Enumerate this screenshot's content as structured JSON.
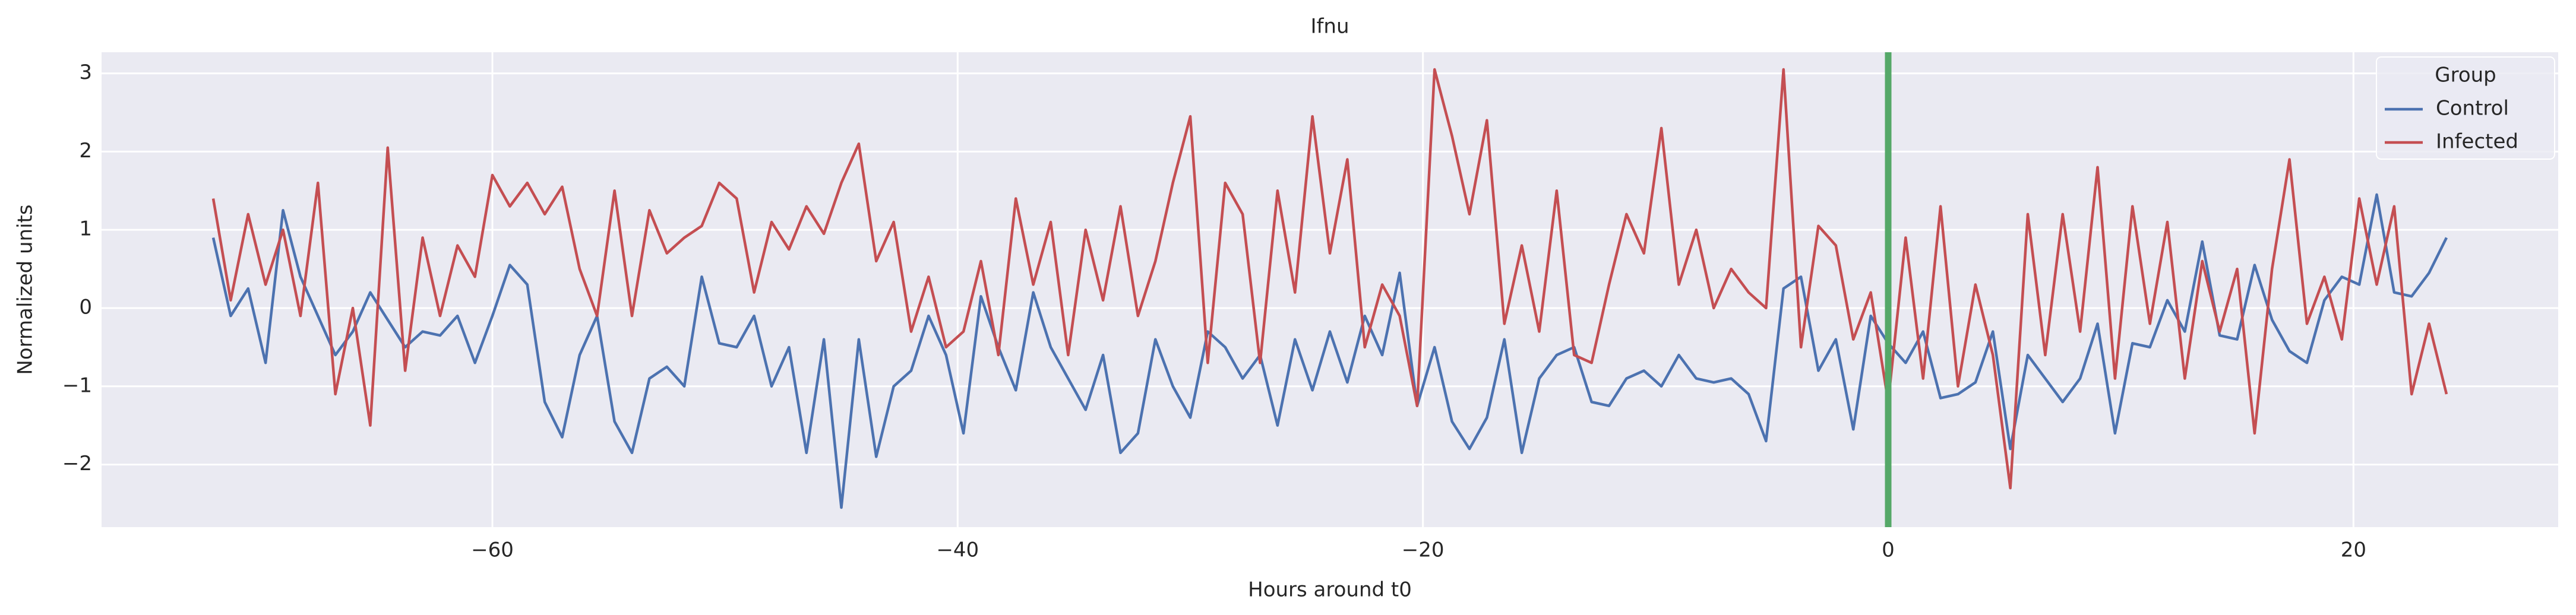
{
  "chart_data": {
    "type": "line",
    "title": "Ifnu",
    "xlabel": "Hours around t0",
    "ylabel": "Normalized units",
    "x": [
      -72,
      -71.25,
      -70.5,
      -69.75,
      -69,
      -68.25,
      -67.5,
      -66.75,
      -66,
      -65.25,
      -64.5,
      -63.75,
      -63,
      -62.25,
      -61.5,
      -60.75,
      -60,
      -59.25,
      -58.5,
      -57.75,
      -57,
      -56.25,
      -55.5,
      -54.75,
      -54,
      -53.25,
      -52.5,
      -51.75,
      -51,
      -50.25,
      -49.5,
      -48.75,
      -48,
      -47.25,
      -46.5,
      -45.75,
      -45,
      -44.25,
      -43.5,
      -42.75,
      -42,
      -41.25,
      -40.5,
      -39.75,
      -39,
      -38.25,
      -37.5,
      -36.75,
      -36,
      -35.25,
      -34.5,
      -33.75,
      -33,
      -32.25,
      -31.5,
      -30.75,
      -30,
      -29.25,
      -28.5,
      -27.75,
      -27,
      -26.25,
      -25.5,
      -24.75,
      -24,
      -23.25,
      -22.5,
      -21.75,
      -21,
      -20.25,
      -19.5,
      -18.75,
      -18,
      -17.25,
      -16.5,
      -15.75,
      -15,
      -14.25,
      -13.5,
      -12.75,
      -12,
      -11.25,
      -10.5,
      -9.75,
      -9,
      -8.25,
      -7.5,
      -6.75,
      -6,
      -5.25,
      -4.5,
      -3.75,
      -3,
      -2.25,
      -1.5,
      -0.75,
      0,
      0.75,
      1.5,
      2.25,
      3,
      3.75,
      4.5,
      5.25,
      6,
      6.75,
      7.5,
      8.25,
      9,
      9.75,
      10.5,
      11.25,
      12,
      12.75,
      13.5,
      14.25,
      15,
      15.75,
      16.5,
      17.25,
      18,
      18.75,
      19.5,
      20.25,
      21,
      21.75,
      22.5,
      23.25,
      24
    ],
    "series": [
      {
        "name": "Control",
        "color": "#4c72b0",
        "values": [
          0.9,
          -0.1,
          0.25,
          -0.7,
          1.25,
          0.4,
          -0.1,
          -0.6,
          -0.3,
          0.2,
          -0.15,
          -0.5,
          -0.3,
          -0.35,
          -0.1,
          -0.7,
          -0.1,
          0.55,
          0.3,
          -1.2,
          -1.65,
          -0.6,
          -0.1,
          -1.45,
          -1.85,
          -0.9,
          -0.75,
          -1.0,
          0.4,
          -0.45,
          -0.5,
          -0.1,
          -1.0,
          -0.5,
          -1.85,
          -0.4,
          -2.55,
          -0.4,
          -1.9,
          -1.0,
          -0.8,
          -0.1,
          -0.6,
          -1.6,
          0.15,
          -0.5,
          -1.05,
          0.2,
          -0.5,
          -0.9,
          -1.3,
          -0.6,
          -1.85,
          -1.6,
          -0.4,
          -1.0,
          -1.4,
          -0.3,
          -0.5,
          -0.9,
          -0.6,
          -1.5,
          -0.4,
          -1.05,
          -0.3,
          -0.95,
          -0.1,
          -0.6,
          0.45,
          -1.25,
          -0.5,
          -1.45,
          -1.8,
          -1.4,
          -0.4,
          -1.85,
          -0.9,
          -0.6,
          -0.5,
          -1.2,
          -1.25,
          -0.9,
          -0.8,
          -1.0,
          -0.6,
          -0.9,
          -0.95,
          -0.9,
          -1.1,
          -1.7,
          0.25,
          0.4,
          -0.8,
          -0.4,
          -1.55,
          -0.1,
          -0.45,
          -0.7,
          -0.3,
          -1.15,
          -1.1,
          -0.95,
          -0.3,
          -1.8,
          -0.6,
          -0.9,
          -1.2,
          -0.9,
          -0.2,
          -1.6,
          -0.45,
          -0.5,
          0.1,
          -0.3,
          0.85,
          -0.35,
          -0.4,
          0.55,
          -0.15,
          -0.55,
          -0.7,
          0.1,
          0.4,
          0.3,
          1.45,
          0.2,
          0.15,
          0.45,
          0.9
        ]
      },
      {
        "name": "Infected",
        "color": "#c44e52",
        "values": [
          1.4,
          0.1,
          1.2,
          0.3,
          1.0,
          -0.1,
          1.6,
          -1.1,
          0.0,
          -1.5,
          2.05,
          -0.8,
          0.9,
          -0.1,
          0.8,
          0.4,
          1.7,
          1.3,
          1.6,
          1.2,
          1.55,
          0.5,
          -0.1,
          1.5,
          -0.1,
          1.25,
          0.7,
          0.9,
          1.05,
          1.6,
          1.4,
          0.2,
          1.1,
          0.75,
          1.3,
          0.95,
          1.6,
          2.1,
          0.6,
          1.1,
          -0.3,
          0.4,
          -0.5,
          -0.3,
          0.6,
          -0.6,
          1.4,
          0.3,
          1.1,
          -0.6,
          1.0,
          0.1,
          1.3,
          -0.1,
          0.6,
          1.6,
          2.45,
          -0.7,
          1.6,
          1.2,
          -0.7,
          1.5,
          0.2,
          2.45,
          0.7,
          1.9,
          -0.5,
          0.3,
          -0.1,
          -1.25,
          3.05,
          2.2,
          1.2,
          2.4,
          -0.2,
          0.8,
          -0.3,
          1.5,
          -0.6,
          -0.7,
          0.3,
          1.2,
          0.7,
          2.3,
          0.3,
          1.0,
          0.0,
          0.5,
          0.2,
          0.0,
          3.05,
          -0.5,
          1.05,
          0.8,
          -0.4,
          0.2,
          -1.2,
          0.9,
          -0.9,
          1.3,
          -1.0,
          0.3,
          -0.6,
          -2.3,
          1.2,
          -0.6,
          1.2,
          -0.3,
          1.8,
          -0.9,
          1.3,
          -0.2,
          1.1,
          -0.9,
          0.6,
          -0.3,
          0.5,
          -1.6,
          0.5,
          1.9,
          -0.2,
          0.4,
          -0.4,
          1.4,
          0.3,
          1.3,
          -1.1,
          -0.2,
          -1.1
        ]
      }
    ],
    "vline": {
      "x": 0,
      "color": "#55a868"
    },
    "xlim": [
      -76.8,
      28.8
    ],
    "xticks": [
      {
        "value": -60,
        "label": "−60"
      },
      {
        "value": -40,
        "label": "−40"
      },
      {
        "value": -20,
        "label": "−20"
      },
      0,
      20
    ],
    "ylim": [
      -2.8,
      3.27
    ],
    "yticks": [
      {
        "value": -2,
        "label": "−2"
      },
      {
        "value": -1,
        "label": "−1"
      },
      0,
      1,
      2,
      3
    ],
    "grid": true,
    "legend_title": "Group",
    "legend_loc": "upper right"
  }
}
